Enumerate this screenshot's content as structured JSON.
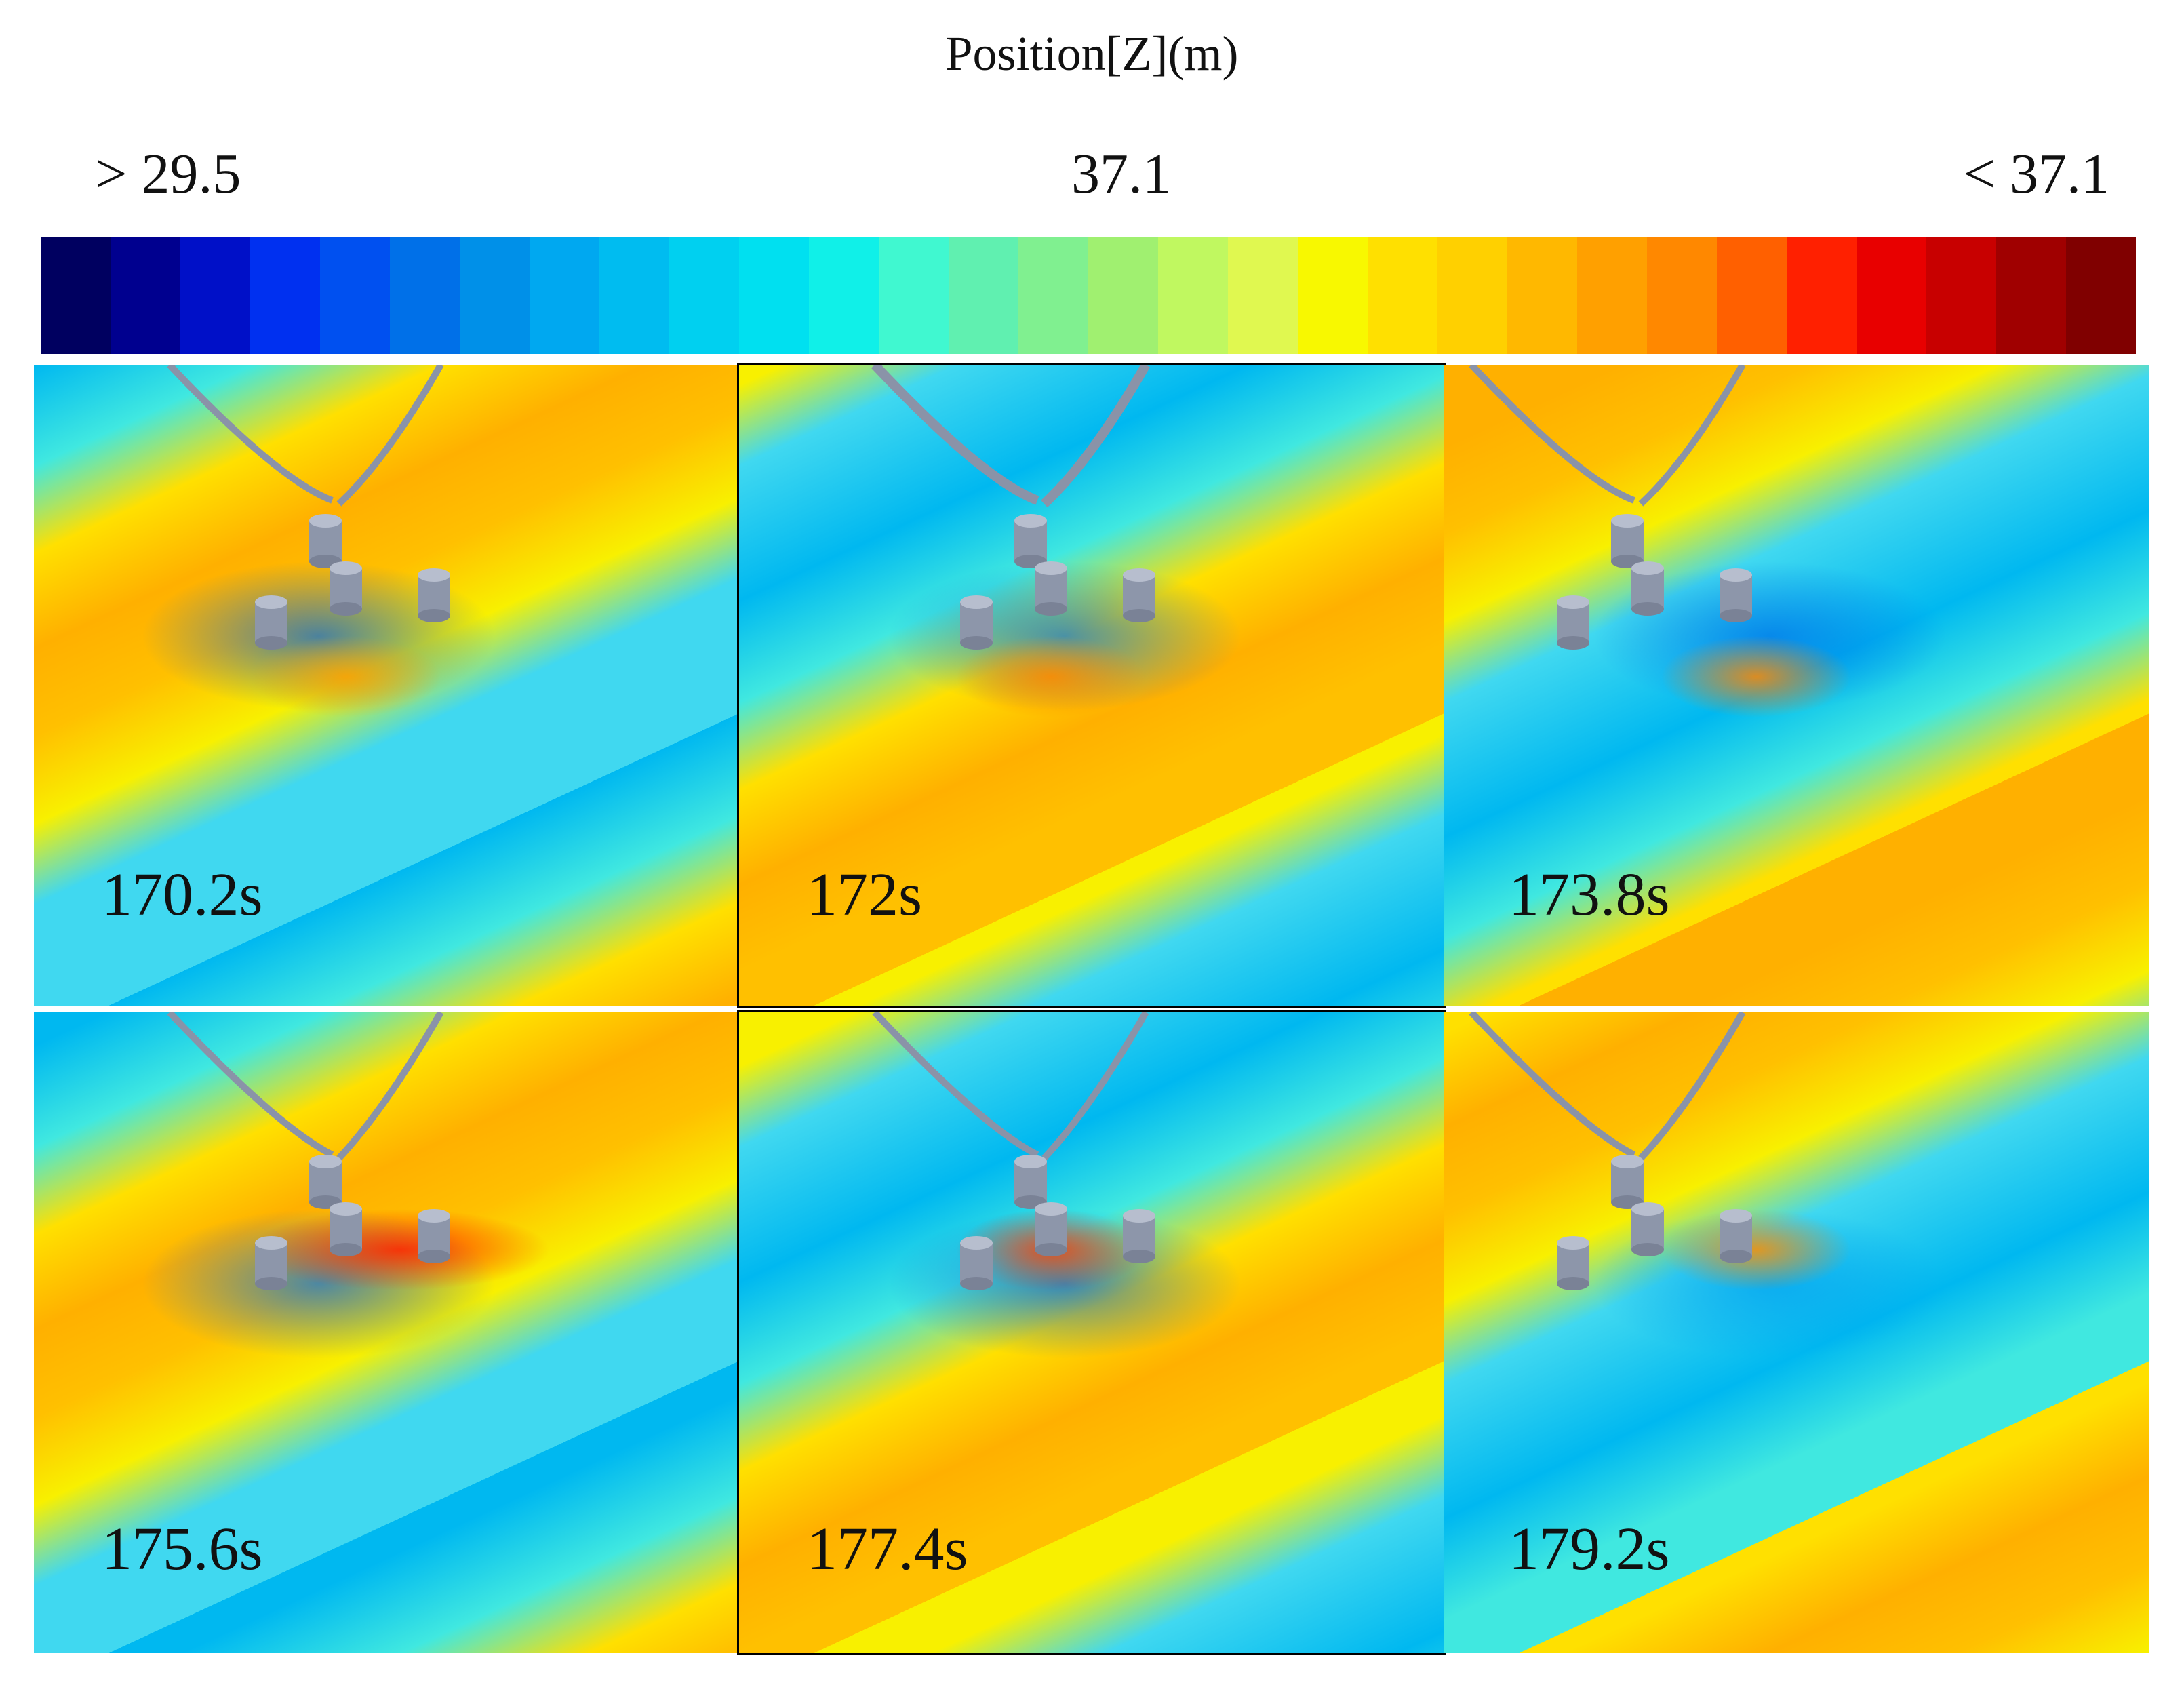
{
  "colorbar": {
    "title": "Position[Z](m)",
    "min_label": "> 29.5",
    "mid_label": "37.1",
    "max_label": "< 37.1",
    "colors": [
      "#000060",
      "#00008f",
      "#0010c8",
      "#0030f0",
      "#0050f0",
      "#0070e8",
      "#0090e8",
      "#00a8f0",
      "#00bcf0",
      "#00d0f0",
      "#00e0f0",
      "#10f0e8",
      "#40f8d0",
      "#60f0b0",
      "#80f090",
      "#a0f070",
      "#c0f860",
      "#e0f850",
      "#f8f800",
      "#ffe000",
      "#ffd000",
      "#ffb800",
      "#ffa000",
      "#ff8800",
      "#ff6000",
      "#ff2000",
      "#e80000",
      "#c80000",
      "#a00000",
      "#800000"
    ]
  },
  "panels": [
    {
      "time": "170.2s"
    },
    {
      "time": "172s"
    },
    {
      "time": "173.8s"
    },
    {
      "time": "175.6s"
    },
    {
      "time": "177.4s"
    },
    {
      "time": "179.2s"
    }
  ]
}
